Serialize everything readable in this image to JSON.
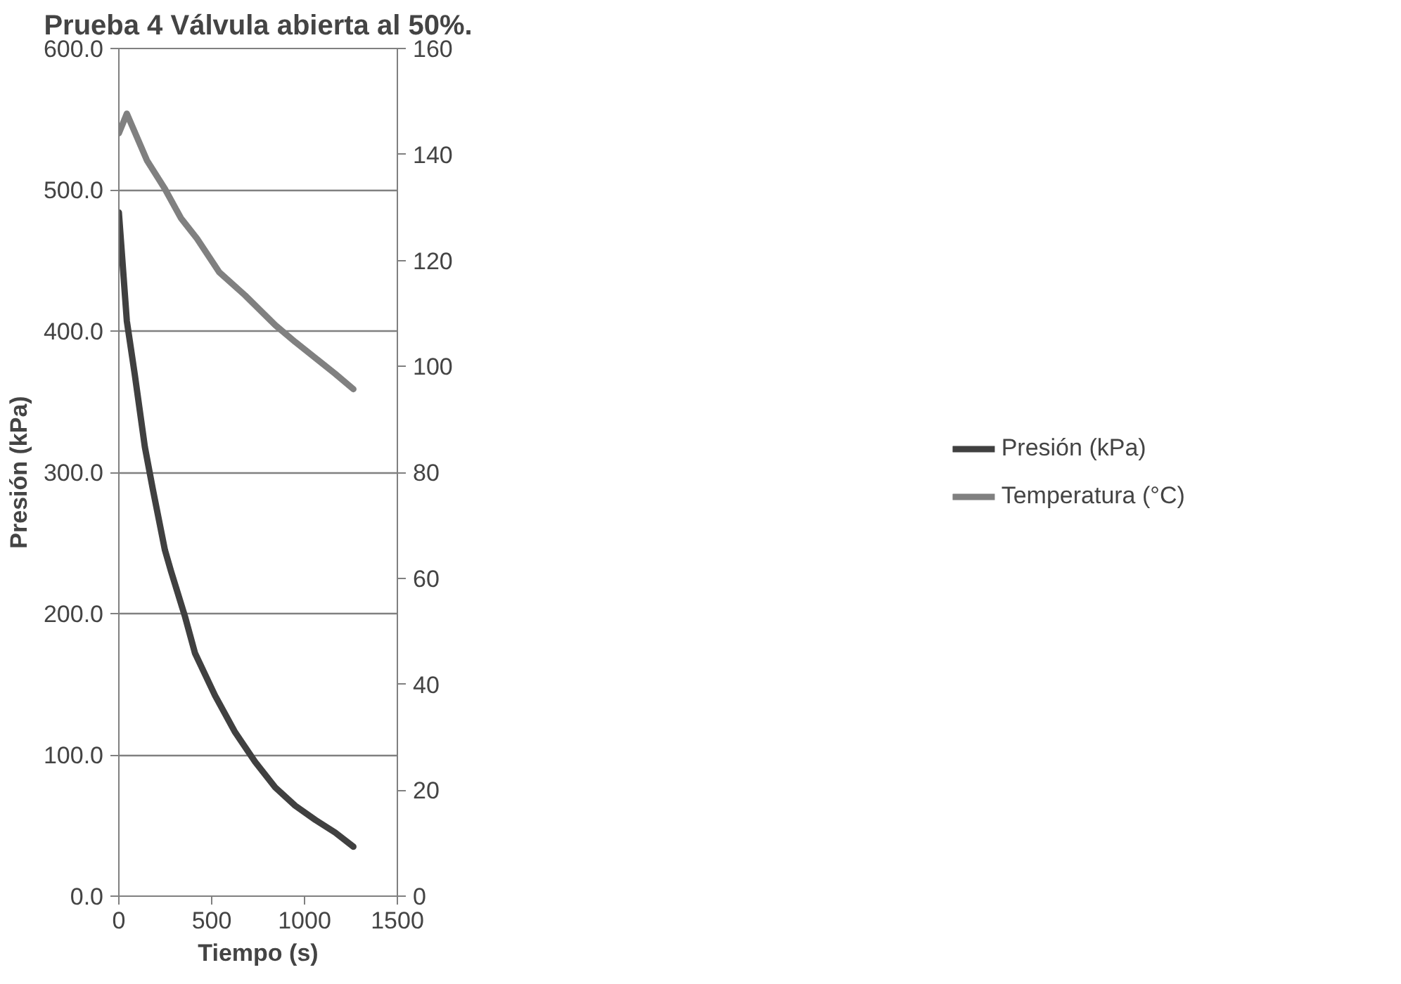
{
  "chart_data": {
    "type": "line",
    "title": "Prueba 4 Válvula abierta al 50%.",
    "xlabel": "Tiempo (s)",
    "ylabel": "Presión (kPa)",
    "xlim": [
      0,
      1500
    ],
    "xticks": [
      0,
      500,
      1000,
      1500
    ],
    "ylim": [
      0,
      600
    ],
    "yticks": [
      {
        "value": 0,
        "label": "0.0"
      },
      {
        "value": 100,
        "label": "100.0"
      },
      {
        "value": 200,
        "label": "200.0"
      },
      {
        "value": 300,
        "label": "300.0"
      },
      {
        "value": 400,
        "label": "400.0"
      },
      {
        "value": 500,
        "label": "500.0"
      },
      {
        "value": 600,
        "label": "600.0"
      }
    ],
    "y2lim": [
      0,
      160
    ],
    "y2ticks": [
      0,
      20,
      40,
      60,
      80,
      100,
      120,
      140,
      160
    ],
    "grid": "y",
    "legend": "right",
    "marker": "none",
    "line_style": "solid",
    "series": [
      {
        "name": "Presión (kPa)",
        "color": "#404040",
        "x": [
          0,
          43,
          86,
          140,
          183,
          248,
          281,
          356,
          410,
          518,
          626,
          734,
          842,
          950,
          1058,
          1165,
          1263
        ],
        "values": [
          484,
          407,
          369,
          318,
          288,
          245,
          230,
          198,
          172,
          142,
          116,
          95,
          77,
          64,
          54,
          45,
          35
        ]
      },
      {
        "name": "Temperatura (°C)",
        "color": "#808080",
        "axis": "y2",
        "x": [
          0,
          43,
          76,
          151,
          248,
          334,
          421,
          540,
          680,
          842,
          950,
          1058,
          1165,
          1263
        ],
        "values": [
          144.0,
          147.7,
          145.0,
          138.9,
          133.5,
          128.0,
          124.1,
          117.8,
          113.4,
          107.8,
          104.6,
          101.6,
          98.6,
          95.7
        ]
      }
    ]
  }
}
